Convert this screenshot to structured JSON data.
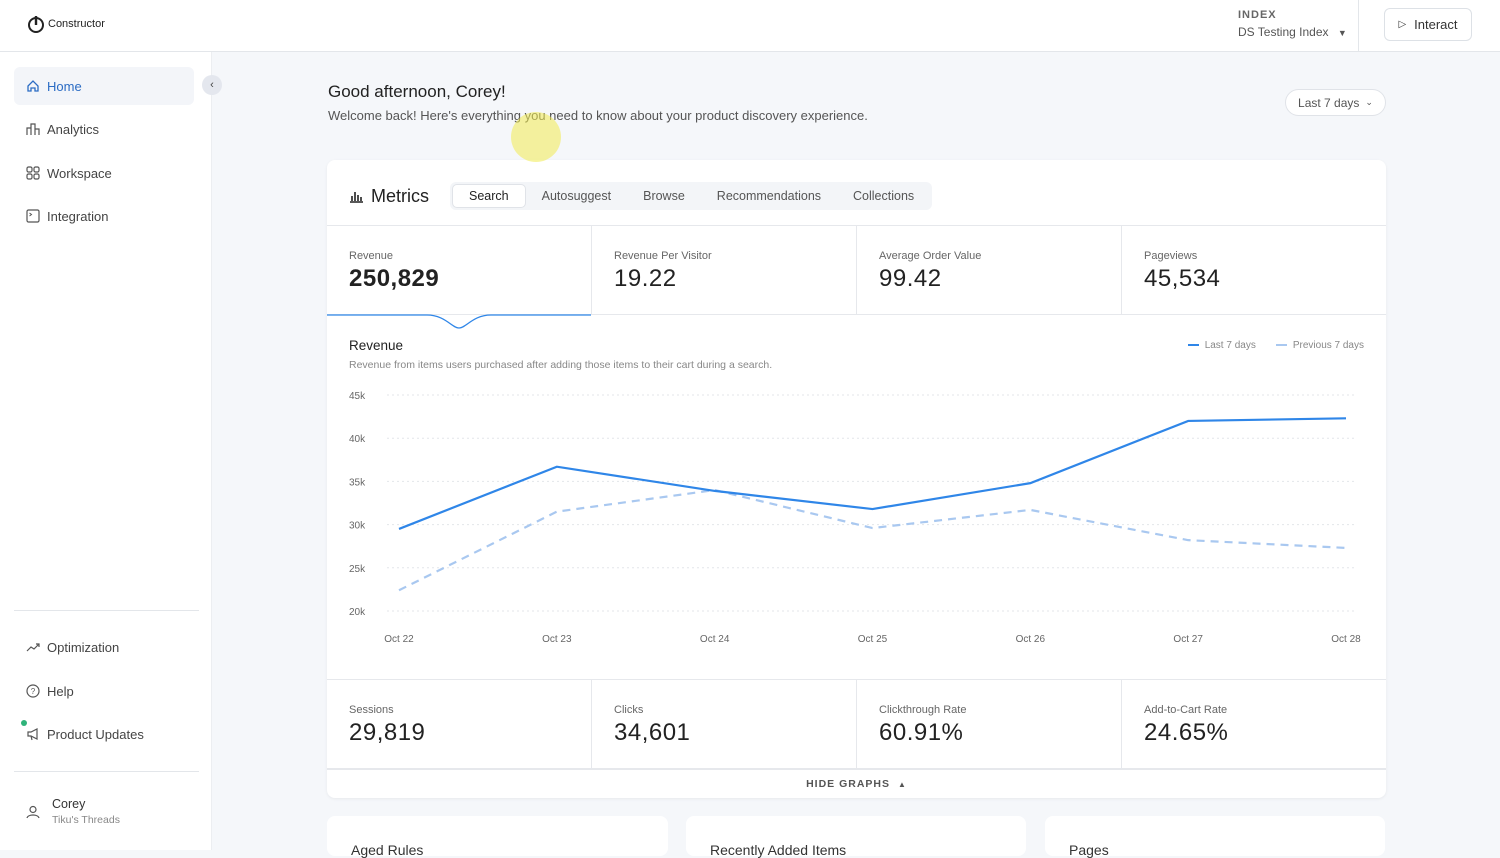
{
  "header": {
    "brand": "Constructor",
    "index_label": "INDEX",
    "index_value": "DS Testing Index",
    "interact": "Interact"
  },
  "sidebar": {
    "items": [
      {
        "label": "Home"
      },
      {
        "label": "Analytics"
      },
      {
        "label": "Workspace"
      },
      {
        "label": "Integration"
      }
    ],
    "bottom": [
      {
        "label": "Optimization"
      },
      {
        "label": "Help"
      },
      {
        "label": "Product Updates"
      }
    ],
    "user": {
      "name": "Corey",
      "org": "Tiku's Threads"
    }
  },
  "main": {
    "greeting": "Good afternoon, Corey!",
    "subtitle": "Welcome back! Here's everything you need to know about your product discovery experience.",
    "range": "Last 7 days"
  },
  "metrics": {
    "title": "Metrics",
    "tabs": [
      "Search",
      "Autosuggest",
      "Browse",
      "Recommendations",
      "Collections"
    ],
    "top": [
      {
        "label": "Revenue",
        "value": "250,829"
      },
      {
        "label": "Revenue Per Visitor",
        "value": "19.22"
      },
      {
        "label": "Average Order Value",
        "value": "99.42"
      },
      {
        "label": "Pageviews",
        "value": "45,534"
      }
    ],
    "bottom": [
      {
        "label": "Sessions",
        "value": "29,819"
      },
      {
        "label": "Clicks",
        "value": "34,601"
      },
      {
        "label": "Clickthrough Rate",
        "value": "60.91%"
      },
      {
        "label": "Add-to-Cart Rate",
        "value": "24.65%"
      }
    ],
    "hide": "HIDE GRAPHS"
  },
  "chart_data": {
    "type": "line",
    "title": "Revenue",
    "subtitle": "Revenue from items users purchased after adding those items to their cart during a search.",
    "categories": [
      "Oct 22",
      "Oct 23",
      "Oct 24",
      "Oct 25",
      "Oct 26",
      "Oct 27",
      "Oct 28"
    ],
    "yticks": [
      "20k",
      "25k",
      "30k",
      "35k",
      "40k",
      "45k"
    ],
    "ylim": [
      20000,
      45000
    ],
    "legend": "top-right",
    "series": [
      {
        "name": "Last 7 days",
        "color": "#2f86e8",
        "values": [
          29500,
          36700,
          33900,
          31800,
          34800,
          42000,
          42300
        ]
      },
      {
        "name": "Previous 7 days",
        "color": "#a9c8f0",
        "values": [
          22400,
          31500,
          34000,
          29600,
          31700,
          28200,
          27300
        ]
      }
    ]
  },
  "cards": [
    "Aged Rules",
    "Recently Added Items",
    "Pages"
  ]
}
